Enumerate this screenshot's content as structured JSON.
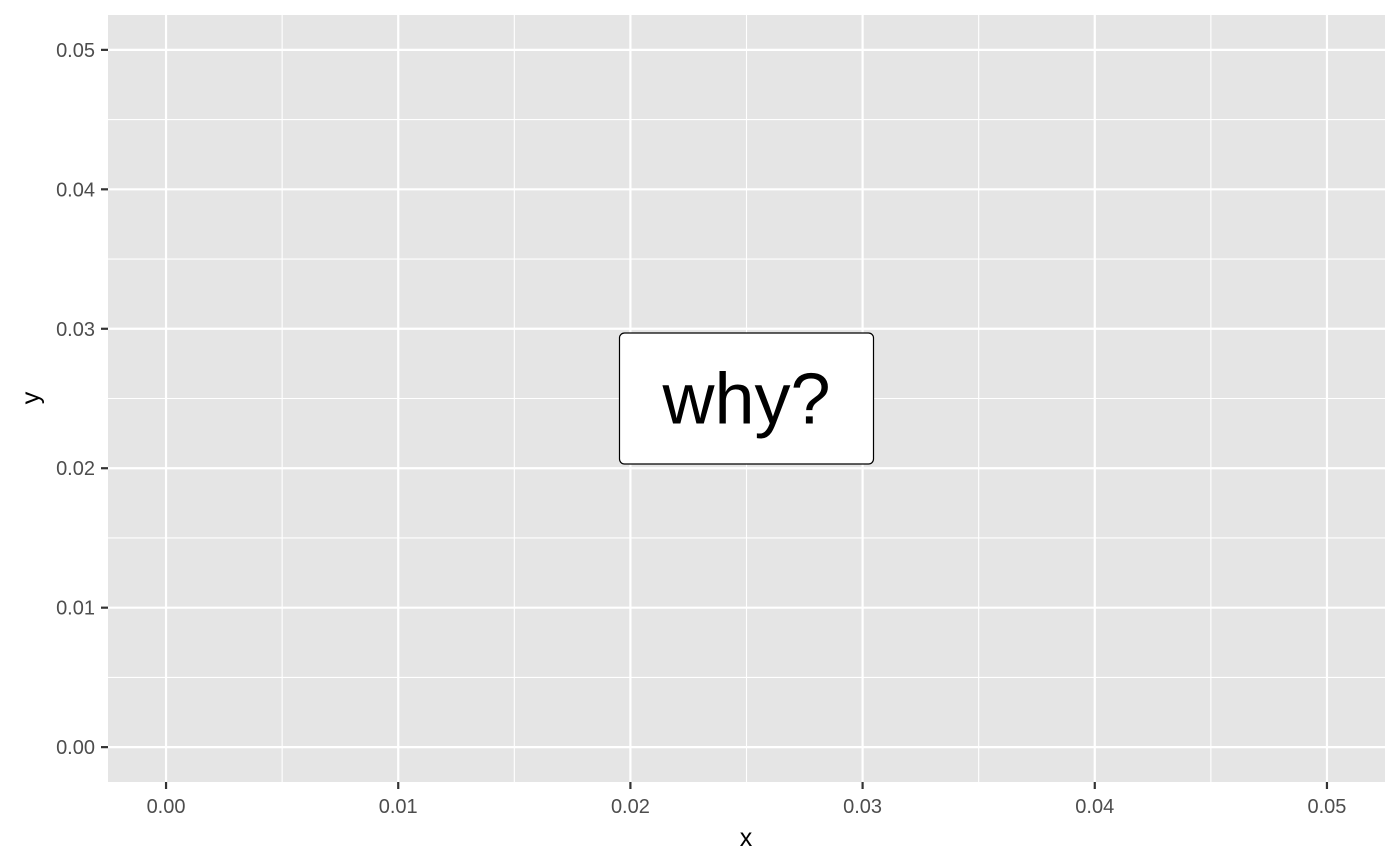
{
  "chart_data": {
    "type": "scatter",
    "title": "",
    "xlabel": "x",
    "ylabel": "y",
    "xlim": [
      -0.0025,
      0.0525
    ],
    "ylim": [
      -0.0025,
      0.0525
    ],
    "x_ticks": [
      0,
      0.01,
      0.02,
      0.03,
      0.04,
      0.05
    ],
    "x_tick_labels": [
      "0.00",
      "0.01",
      "0.02",
      "0.03",
      "0.04",
      "0.05"
    ],
    "y_ticks": [
      0,
      0.01,
      0.02,
      0.03,
      0.04,
      0.05
    ],
    "y_tick_labels": [
      "0.00",
      "0.01",
      "0.02",
      "0.03",
      "0.04",
      "0.05"
    ],
    "x_minor_ticks": [
      0.005,
      0.015,
      0.025,
      0.035,
      0.045
    ],
    "y_minor_ticks": [
      0.005,
      0.015,
      0.025,
      0.035,
      0.045
    ],
    "grid": true,
    "legend": "none",
    "annotations": [
      {
        "text": "why?",
        "x": 0.025,
        "y": 0.025,
        "style": "label-box"
      }
    ],
    "colors": {
      "panel_background": "#e5e5e5",
      "grid": "#ffffff",
      "tick_text": "#4d4d4d",
      "tick_mark": "#333333",
      "label_fill": "#ffffff",
      "label_border": "#000000"
    }
  }
}
